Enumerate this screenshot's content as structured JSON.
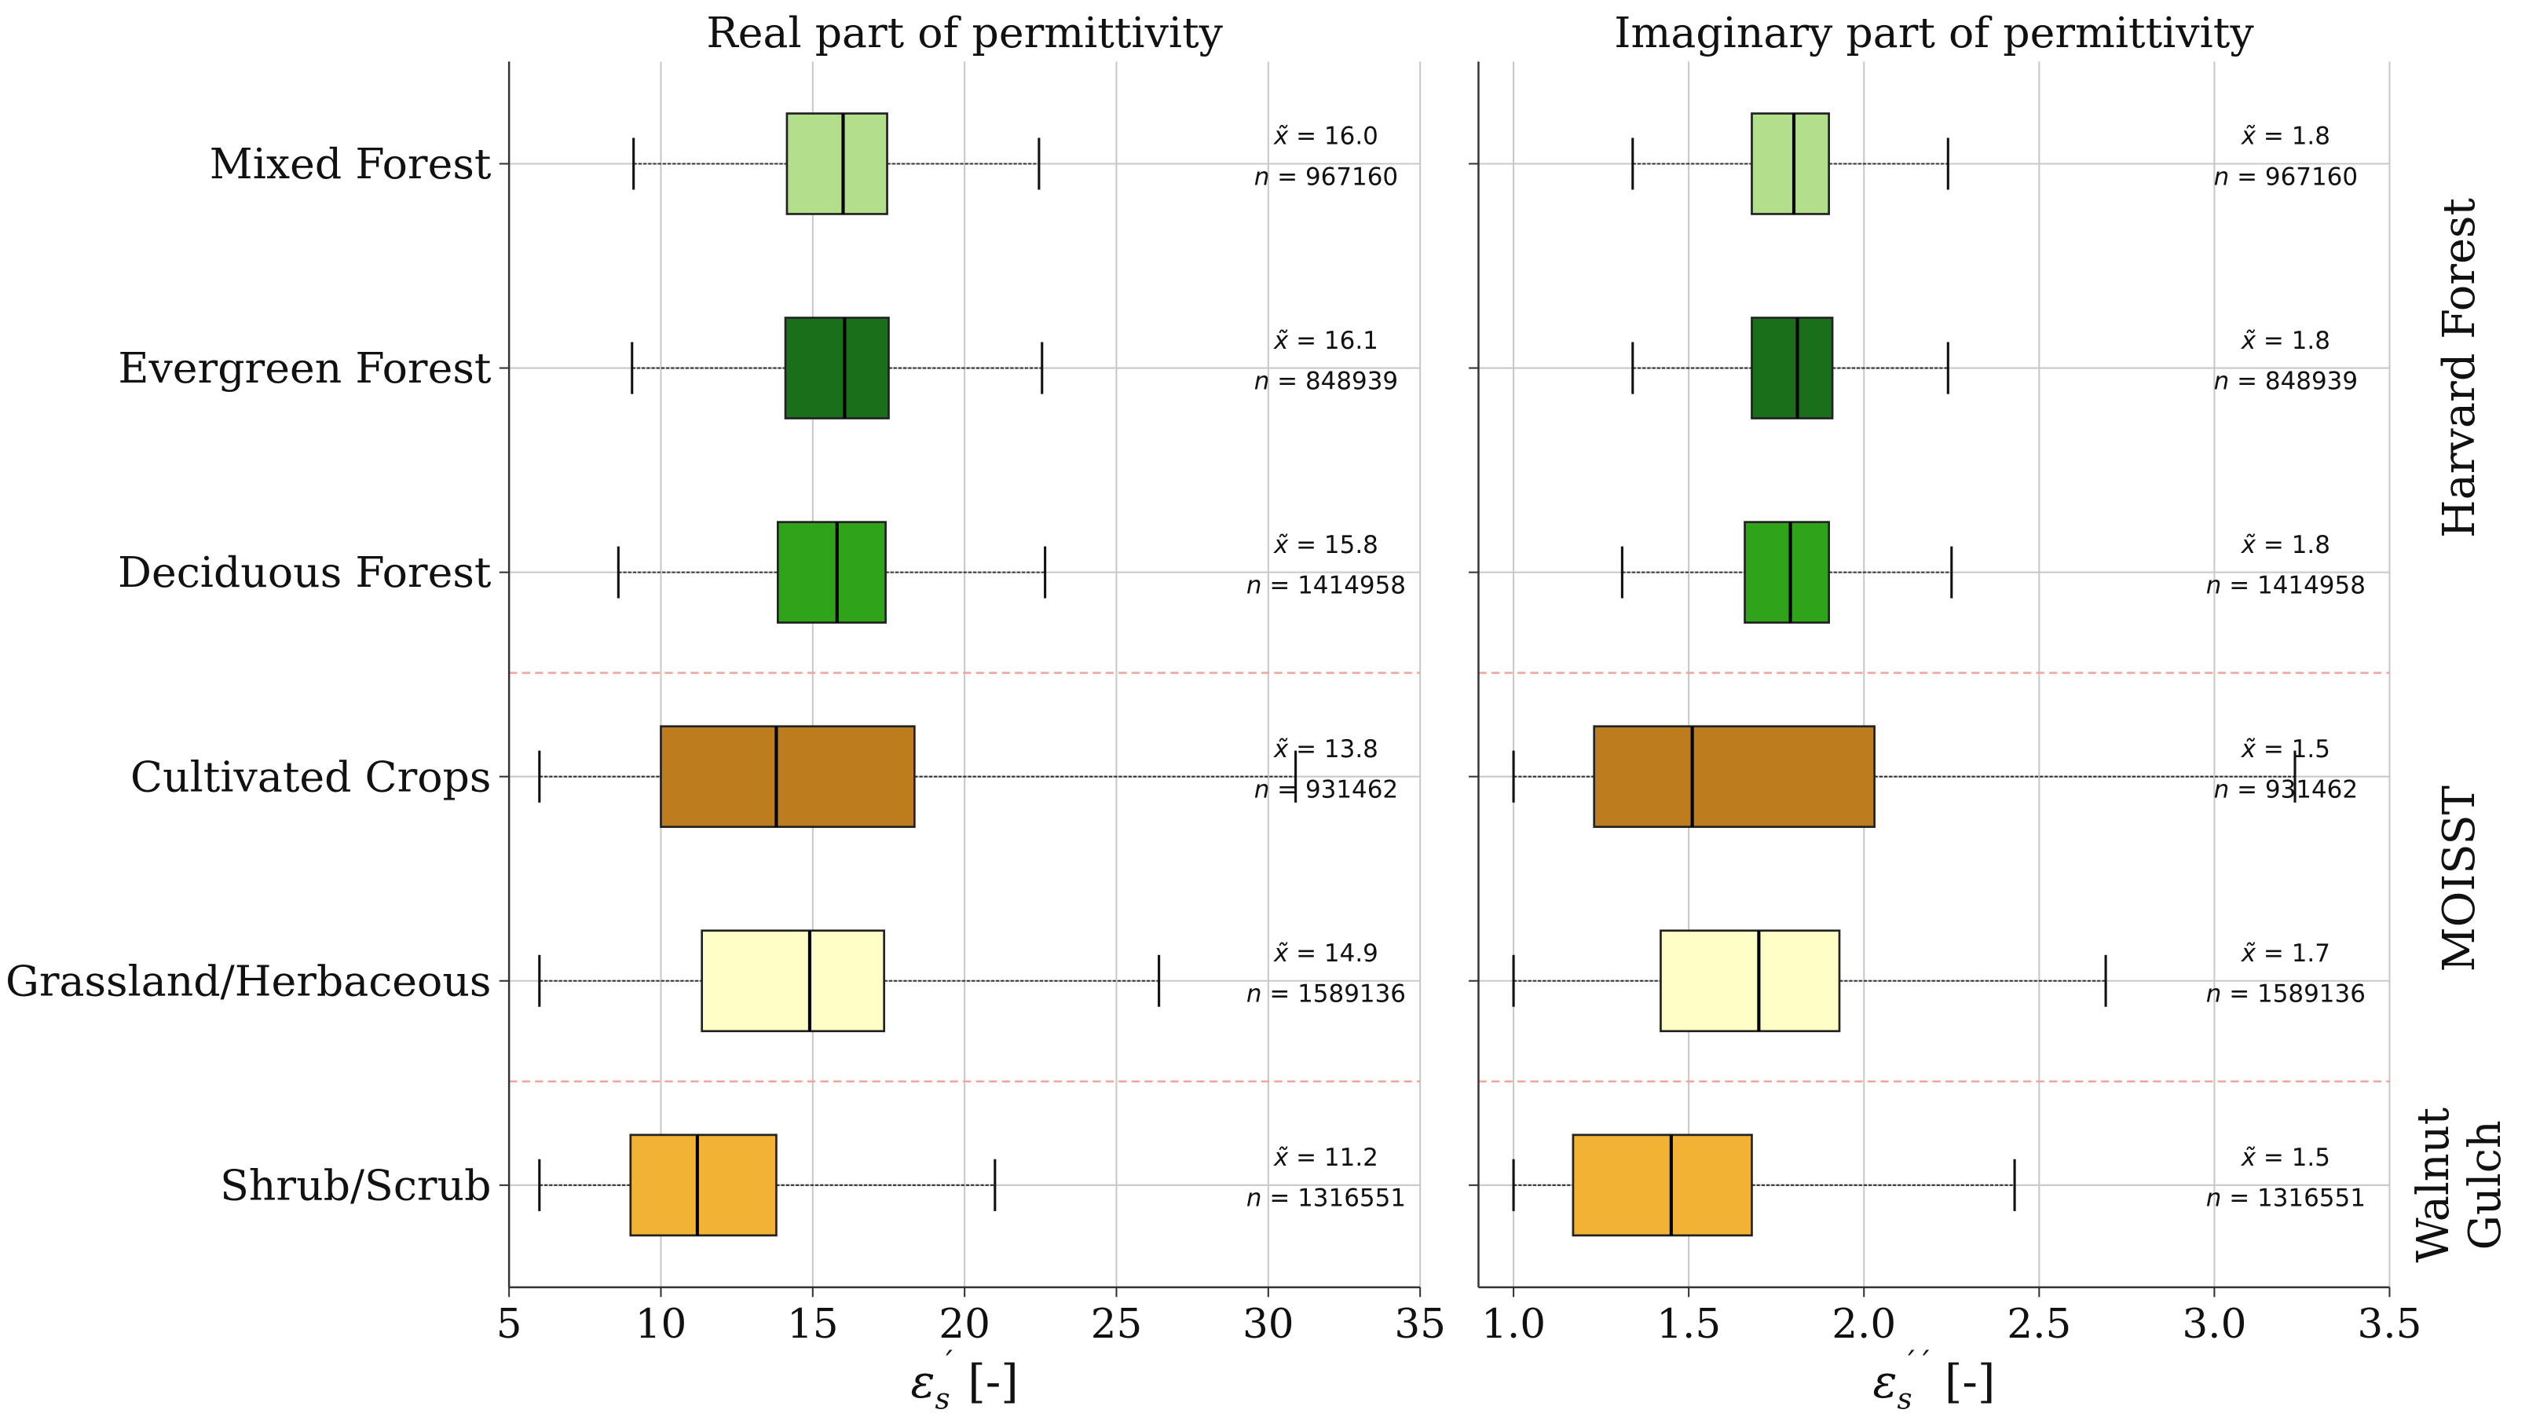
{
  "chart_data": [
    {
      "type": "boxplot",
      "title": "Real part of permittivity",
      "xlabel": {
        "symbol": "ε",
        "sub": "s",
        "sup": "´",
        "unit": "[-]"
      },
      "xlim": [
        5,
        35
      ],
      "xticks": [
        "5",
        "10",
        "15",
        "20",
        "25",
        "30",
        "35"
      ],
      "xtick_values": [
        5,
        10,
        15,
        20,
        25,
        30,
        35
      ],
      "grid": true,
      "series": [
        {
          "name": "Mixed Forest",
          "color": "#b3df8c",
          "whisker_low": 9.1,
          "q1": 14.15,
          "median": 16.0,
          "q3": 17.45,
          "whisker_high": 22.45,
          "median_label": "16.0",
          "n": "967160"
        },
        {
          "name": "Evergreen Forest",
          "color": "#1a701a",
          "whisker_low": 9.05,
          "q1": 14.1,
          "median": 16.05,
          "q3": 17.5,
          "whisker_high": 22.55,
          "median_label": "16.1",
          "n": "848939"
        },
        {
          "name": "Deciduous Forest",
          "color": "#2fa41a",
          "whisker_low": 8.6,
          "q1": 13.85,
          "median": 15.8,
          "q3": 17.4,
          "whisker_high": 22.65,
          "median_label": "15.8",
          "n": "1414958"
        },
        {
          "name": "Cultivated Crops",
          "color": "#bd7d1e",
          "whisker_low": 6.0,
          "q1": 10.0,
          "median": 13.8,
          "q3": 18.35,
          "whisker_high": 30.9,
          "median_label": "13.8",
          "n": "931462"
        },
        {
          "name": "Grassland/Herbaceous",
          "color": "#fefec6",
          "whisker_low": 6.0,
          "q1": 11.35,
          "median": 14.9,
          "q3": 17.35,
          "whisker_high": 26.4,
          "median_label": "14.9",
          "n": "1589136"
        },
        {
          "name": "Shrub/Scrub",
          "color": "#f2b233",
          "whisker_low": 6.0,
          "q1": 9.0,
          "median": 11.2,
          "q3": 13.8,
          "whisker_high": 21.0,
          "median_label": "11.2",
          "n": "1316551"
        }
      ]
    },
    {
      "type": "boxplot",
      "title": "Imaginary part of permittivity",
      "xlabel": {
        "symbol": "ε",
        "sub": "s",
        "sup": "´´",
        "unit": "[-]"
      },
      "xlim": [
        0.9,
        3.5
      ],
      "xticks": [
        "1.0",
        "1.5",
        "2.0",
        "2.5",
        "3.0",
        "3.5"
      ],
      "xtick_values": [
        1.0,
        1.5,
        2.0,
        2.5,
        3.0,
        3.5
      ],
      "grid": true,
      "series": [
        {
          "name": "Mixed Forest",
          "color": "#b3df8c",
          "whisker_low": 1.34,
          "q1": 1.68,
          "median": 1.8,
          "q3": 1.9,
          "whisker_high": 2.24,
          "median_label": "1.8",
          "n": "967160"
        },
        {
          "name": "Evergreen Forest",
          "color": "#1a701a",
          "whisker_low": 1.34,
          "q1": 1.68,
          "median": 1.81,
          "q3": 1.91,
          "whisker_high": 2.24,
          "median_label": "1.8",
          "n": "848939"
        },
        {
          "name": "Deciduous Forest",
          "color": "#2fa41a",
          "whisker_low": 1.31,
          "q1": 1.66,
          "median": 1.79,
          "q3": 1.9,
          "whisker_high": 2.25,
          "median_label": "1.8",
          "n": "1414958"
        },
        {
          "name": "Cultivated Crops",
          "color": "#bd7d1e",
          "whisker_low": 1.0,
          "q1": 1.23,
          "median": 1.51,
          "q3": 2.03,
          "whisker_high": 3.23,
          "median_label": "1.5",
          "n": "931462"
        },
        {
          "name": "Grassland/Herbaceous",
          "color": "#fefec6",
          "whisker_low": 1.0,
          "q1": 1.42,
          "median": 1.7,
          "q3": 1.93,
          "whisker_high": 2.69,
          "median_label": "1.7",
          "n": "1589136"
        },
        {
          "name": "Shrub/Scrub",
          "color": "#f2b233",
          "whisker_low": 1.0,
          "q1": 1.17,
          "median": 1.45,
          "q3": 1.68,
          "whisker_high": 2.43,
          "median_label": "1.5",
          "n": "1316551"
        }
      ]
    }
  ],
  "annotation_prefixes": {
    "median": "x̃ = ",
    "n": "n = "
  },
  "groups": [
    {
      "lines": [
        "Harvard Forest"
      ],
      "rows": [
        0,
        2
      ]
    },
    {
      "lines": [
        "MOISST"
      ],
      "rows": [
        3,
        4
      ]
    },
    {
      "lines": [
        "Walnut",
        "Gulch"
      ],
      "rows": [
        5,
        5
      ]
    }
  ],
  "separator_color": "#f4a39a"
}
